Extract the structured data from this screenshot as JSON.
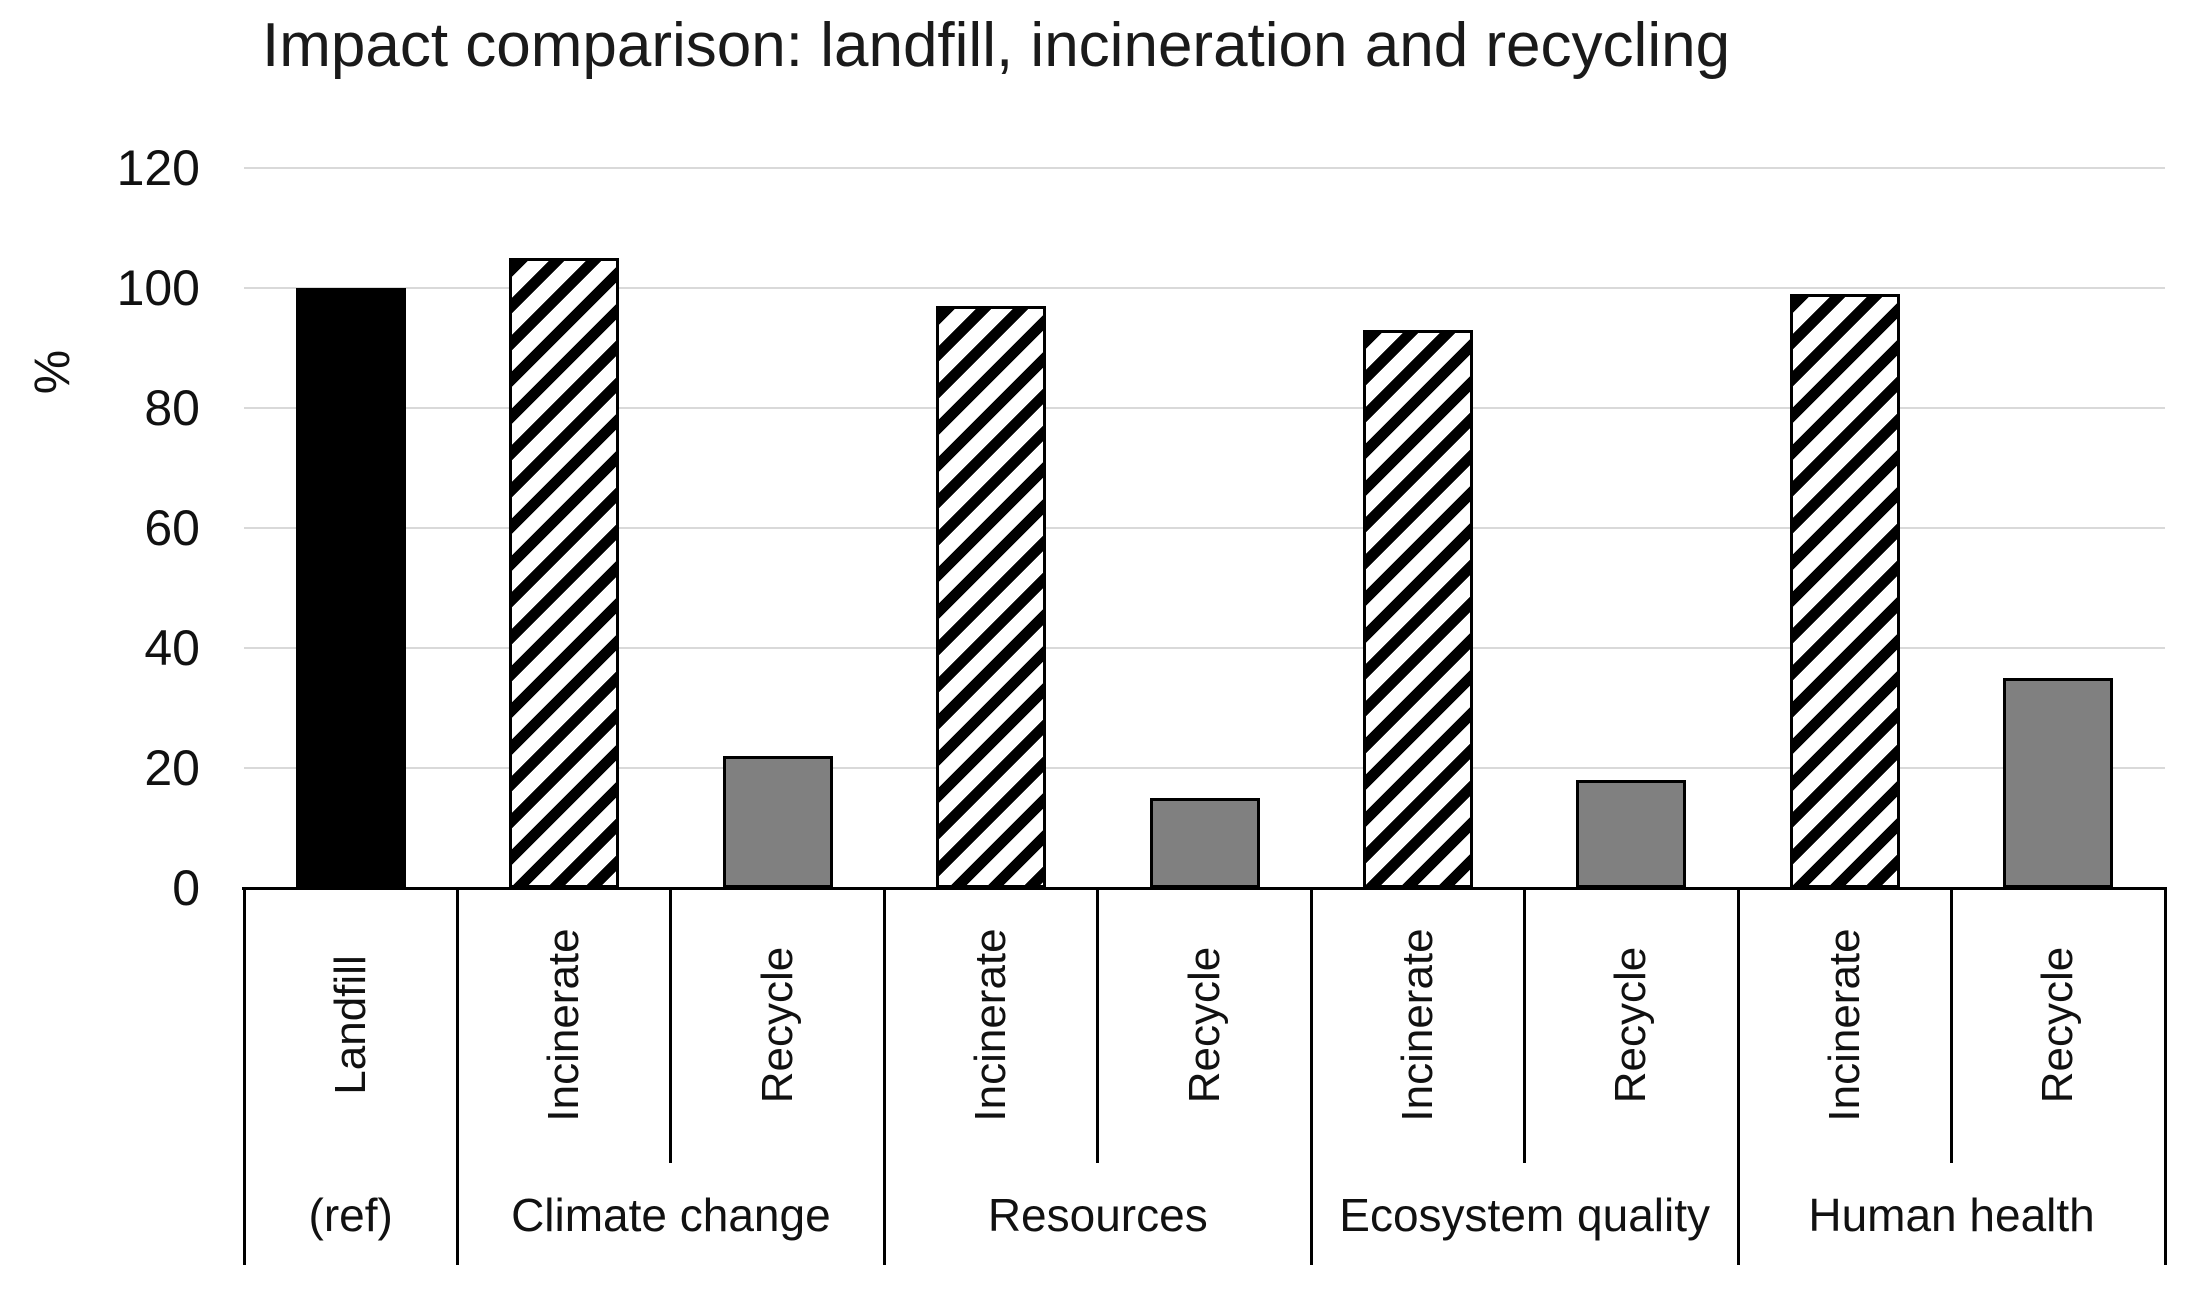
{
  "chart_data": {
    "type": "bar",
    "title": "Impact comparison: landfill, incineration and recycling",
    "ylabel": "%",
    "ylim": [
      0,
      120
    ],
    "yticks": [
      0,
      20,
      40,
      60,
      80,
      100,
      120
    ],
    "grid": true,
    "legend_position": "none",
    "groups": [
      {
        "label": "(ref)",
        "bars": [
          {
            "name": "Landfill",
            "value": 100,
            "style": "solid"
          }
        ]
      },
      {
        "label": "Climate change",
        "bars": [
          {
            "name": "Incinerate",
            "value": 105,
            "style": "hatched"
          },
          {
            "name": "Recycle",
            "value": 22,
            "style": "gray"
          }
        ]
      },
      {
        "label": "Resources",
        "bars": [
          {
            "name": "Incinerate",
            "value": 97,
            "style": "hatched"
          },
          {
            "name": "Recycle",
            "value": 15,
            "style": "gray"
          }
        ]
      },
      {
        "label": "Ecosystem quality",
        "bars": [
          {
            "name": "Incinerate",
            "value": 93,
            "style": "hatched"
          },
          {
            "name": "Recycle",
            "value": 18,
            "style": "gray"
          }
        ]
      },
      {
        "label": "Human health",
        "bars": [
          {
            "name": "Incinerate",
            "value": 99,
            "style": "hatched"
          },
          {
            "name": "Recycle",
            "value": 35,
            "style": "gray"
          }
        ]
      }
    ],
    "colors": {
      "bar_solid": "#000000",
      "bar_gray": "#808080",
      "hatch": "#000000",
      "hatch_bg": "#ffffff",
      "gridline": "#d9d9d9",
      "axis": "#000000",
      "text": "#1a1a1a"
    }
  }
}
